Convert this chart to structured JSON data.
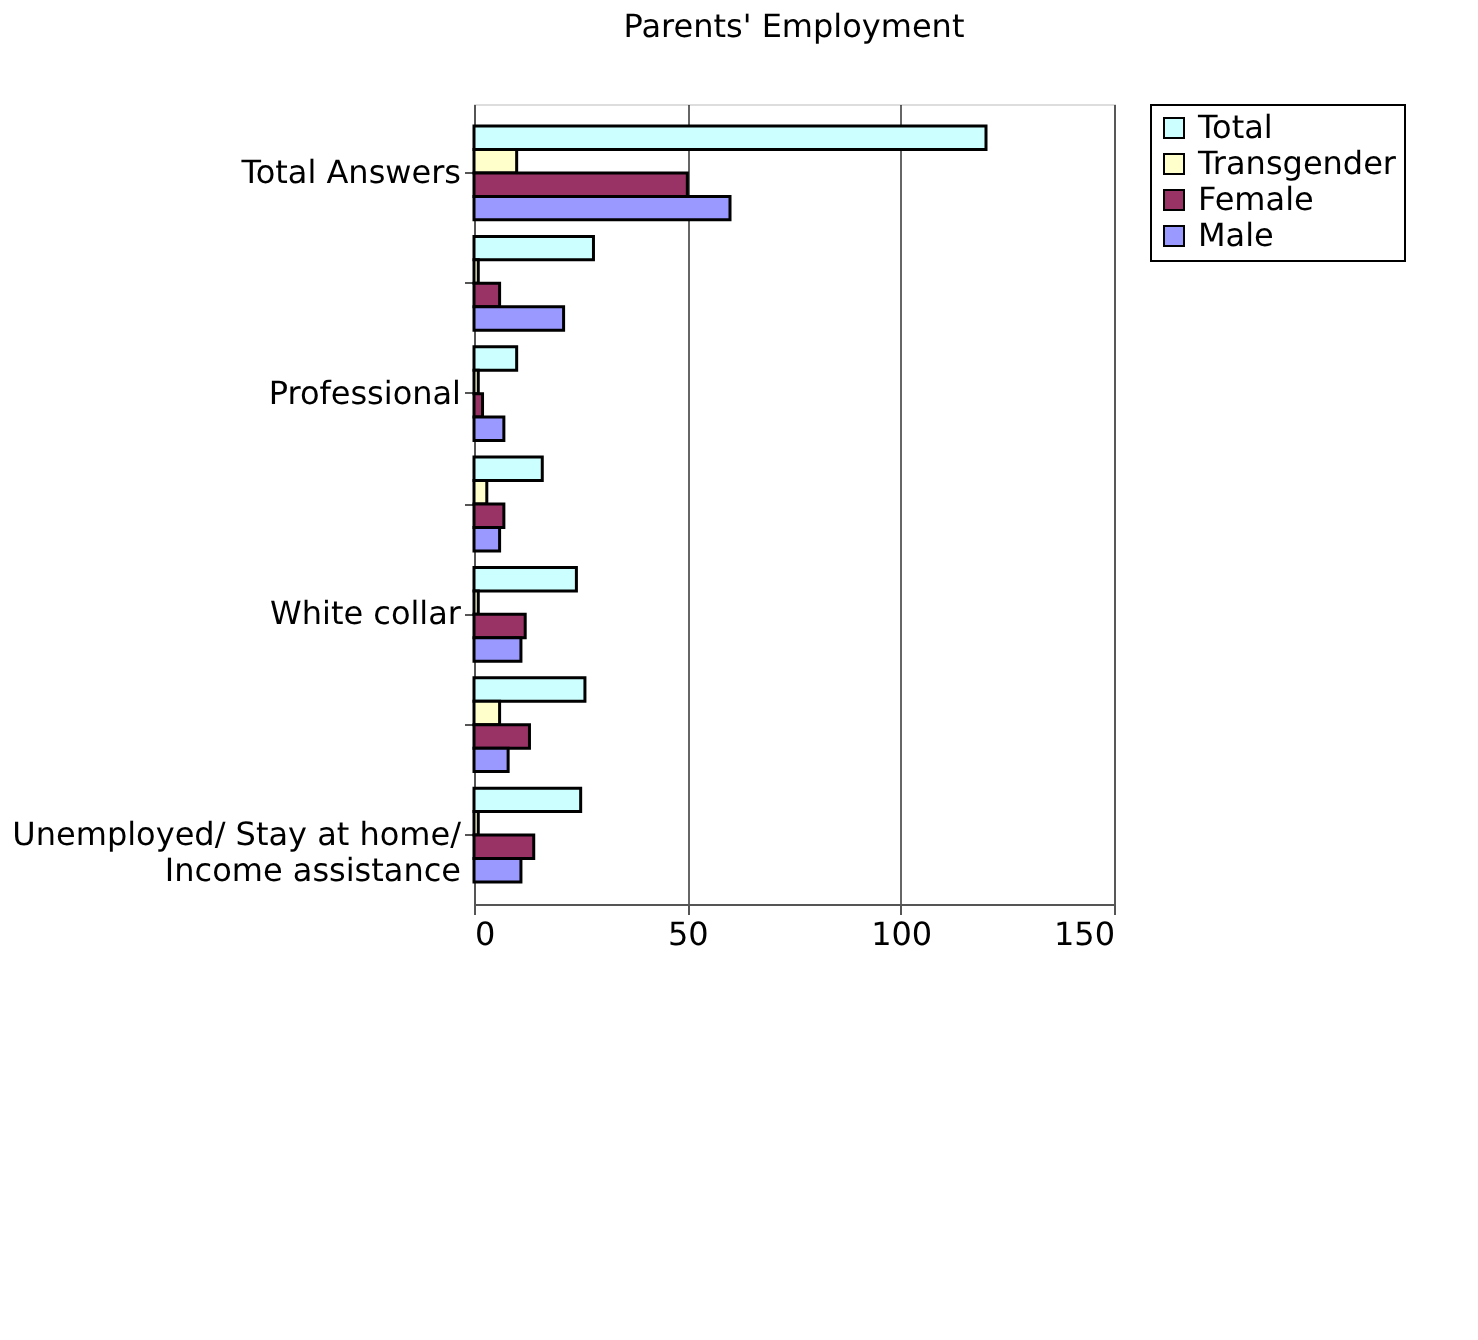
{
  "chart_data": {
    "type": "bar",
    "orientation": "horizontal",
    "title": "Parents' Employment",
    "categories": [
      "Total Answers",
      null,
      "Professional",
      null,
      "White collar",
      null,
      "Unemployed/ Stay at home/ Income assistance"
    ],
    "series": [
      {
        "name": "Total",
        "color": "#ccffff",
        "values": [
          120,
          28,
          10,
          16,
          24,
          26,
          25
        ]
      },
      {
        "name": "Transgender",
        "color": "#ffffcc",
        "values": [
          10,
          1,
          1,
          3,
          1,
          6,
          1
        ]
      },
      {
        "name": "Female",
        "color": "#993366",
        "values": [
          50,
          6,
          2,
          7,
          12,
          13,
          14
        ]
      },
      {
        "name": "Male",
        "color": "#9999ff",
        "values": [
          60,
          21,
          7,
          6,
          11,
          8,
          11
        ]
      }
    ],
    "xlim": [
      0,
      150
    ],
    "xticks": [
      0,
      50,
      100,
      150
    ],
    "grid": "x",
    "legend": "right"
  }
}
